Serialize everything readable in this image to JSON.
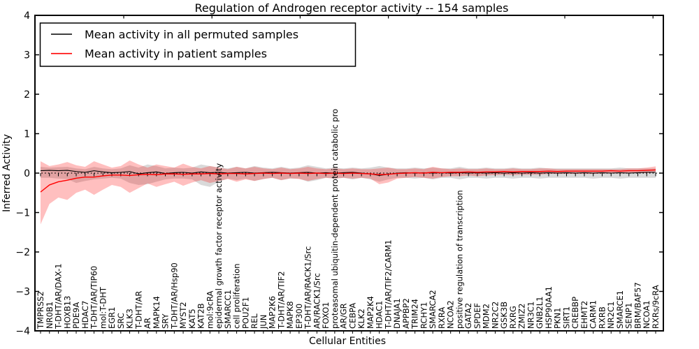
{
  "chart_data": {
    "type": "line",
    "title": "Regulation of Androgen receptor activity -- 154 samples",
    "xlabel": "Cellular Entities",
    "ylabel": "Inferred Activity",
    "ylim": [
      -4,
      4
    ],
    "ytick_labels": [
      "4",
      "3",
      "2",
      "1",
      "0",
      "−1",
      "−2",
      "−3",
      "−4"
    ],
    "grid": false,
    "legend_position": "upper left",
    "zero_line": 0,
    "categories": [
      "TMPRSS2",
      "NR0B1",
      "T-DHT/AR/DAX-1",
      "HOXB13",
      "PDE9A",
      "HDAC7",
      "T-DHT/AR/TIP60",
      "mol:T-DHT",
      "EGR1",
      "SRC",
      "KLK3",
      "T-DHT/AR",
      "AR",
      "MAPK14",
      "SRY",
      "T-DHT/AR/Hsp90",
      "MYST2",
      "KAT5",
      "KAT2B",
      "mol:9cRA",
      "epidermal growth factor receptor activity",
      "SMARCC1",
      "cell proliferation",
      "POU2F1",
      "REL",
      "JUN",
      "MAP2K6",
      "T-DHT/AR/TIF2",
      "MAPK8",
      "EP300",
      "T-DHT/AR/RACK1/Src",
      "AR/RACK1/Src",
      "FOXO1",
      "proteasomal ubiquitin-dependent protein catabolic pro",
      "AR/GR",
      "CEBPA",
      "KLK2",
      "MAP2K4",
      "HDAC1",
      "T-DHT/AR/TIF2/CARM1",
      "DNAJA1",
      "APPBP2",
      "TRIM24",
      "RCHY1",
      "SMARCA2",
      "RXRA",
      "NCOA2",
      "positive regulation of transcription",
      "GATA2",
      "SPDEF",
      "MDM2",
      "NR2C2",
      "GSK3B",
      "RXRG",
      "ZMIZ2",
      "NR3C1",
      "GNB2L1",
      "HSP90AA1",
      "PKN1",
      "SIRT1",
      "CREBBP",
      "EHMT2",
      "CARM1",
      "RXRB",
      "NR2C1",
      "SMARCE1",
      "SENP1",
      "BRM/BAF57",
      "NCOA1",
      "RXRs/9cRA"
    ],
    "series": [
      {
        "name": "Mean activity in all permuted samples",
        "color": "#000000",
        "values": [
          0.06,
          0.07,
          0.06,
          0.07,
          0.04,
          0.02,
          0.06,
          0.03,
          0.01,
          0.02,
          0.04,
          -0.02,
          0.01,
          0.03,
          -0.01,
          0.01,
          0.02,
          0,
          0.03,
          0.01,
          0.02,
          0,
          0.01,
          0.02,
          0,
          0.01,
          0.02,
          0.01,
          0,
          0.01,
          0.02,
          0,
          0.01,
          0,
          0.01,
          0.02,
          0,
          -0.02,
          -0.06,
          -0.03,
          0,
          0.01,
          0,
          0.01,
          0,
          0.01,
          0,
          0.01,
          0,
          0.01,
          0,
          0.01,
          0,
          0.01,
          0,
          0.01,
          0,
          0.01,
          0,
          0.01,
          0,
          0.01,
          0,
          0.01,
          0,
          0.01,
          0,
          0.01,
          0.02,
          0.02
        ]
      },
      {
        "name": "Mean activity in patient samples",
        "color": "#ff0000",
        "values": [
          -0.48,
          -0.3,
          -0.22,
          -0.18,
          -0.13,
          -0.1,
          -0.1,
          -0.07,
          -0.05,
          -0.05,
          -0.06,
          -0.04,
          -0.03,
          -0.04,
          -0.02,
          -0.02,
          -0.03,
          -0.02,
          -0.02,
          -0.01,
          -0.02,
          -0.01,
          -0.01,
          -0.02,
          -0.01,
          0,
          -0.01,
          0,
          -0.01,
          0,
          -0.01,
          0,
          -0.01,
          0,
          -0.01,
          0,
          -0.01,
          -0.02,
          -0.04,
          -0.03,
          -0.01,
          0,
          0.01,
          0,
          0.02,
          0.01,
          0.02,
          0.02,
          0.03,
          0.02,
          0.03,
          0.03,
          0.04,
          0.03,
          0.04,
          0.04,
          0.04,
          0.05,
          0.04,
          0.05,
          0.05,
          0.05,
          0.05,
          0.05,
          0.06,
          0.05,
          0.06,
          0.06,
          0.07,
          0.08
        ]
      }
    ],
    "bands": [
      {
        "name": "permuted-samples-std-band",
        "color": "rgba(0,0,0,0.15)",
        "upper": [
          0.16,
          0.14,
          0.15,
          0.16,
          0.12,
          0.1,
          0.16,
          0.12,
          0.1,
          0.12,
          0.2,
          0.14,
          0.22,
          0.18,
          0.12,
          0.14,
          0.12,
          0.14,
          0.22,
          0.18,
          0.14,
          0.12,
          0.16,
          0.12,
          0.18,
          0.14,
          0.12,
          0.16,
          0.12,
          0.14,
          0.2,
          0.16,
          0.12,
          0.14,
          0.12,
          0.14,
          0.12,
          0.14,
          0.18,
          0.14,
          0.12,
          0.12,
          0.14,
          0.12,
          0.14,
          0.12,
          0.12,
          0.16,
          0.12,
          0.12,
          0.14,
          0.12,
          0.12,
          0.14,
          0.12,
          0.12,
          0.14,
          0.12,
          0.12,
          0.12,
          0.12,
          0.12,
          0.12,
          0.12,
          0.12,
          0.14,
          0.12,
          0.12,
          0.12,
          0.12
        ],
        "lower": [
          -0.12,
          -0.12,
          -0.14,
          -0.15,
          -0.25,
          -0.2,
          -0.16,
          -0.14,
          -0.12,
          -0.14,
          -0.25,
          -0.3,
          -0.28,
          -0.22,
          -0.16,
          -0.14,
          -0.14,
          -0.16,
          -0.3,
          -0.35,
          -0.22,
          -0.14,
          -0.18,
          -0.14,
          -0.2,
          -0.15,
          -0.12,
          -0.18,
          -0.14,
          -0.14,
          -0.22,
          -0.18,
          -0.12,
          -0.14,
          -0.12,
          -0.16,
          -0.12,
          -0.16,
          -0.22,
          -0.16,
          -0.12,
          -0.12,
          -0.14,
          -0.12,
          -0.16,
          -0.12,
          -0.12,
          -0.16,
          -0.12,
          -0.12,
          -0.14,
          -0.12,
          -0.12,
          -0.14,
          -0.12,
          -0.12,
          -0.14,
          -0.12,
          -0.12,
          -0.12,
          -0.12,
          -0.12,
          -0.14,
          -0.12,
          -0.12,
          -0.14,
          -0.12,
          -0.12,
          -0.12,
          -0.12
        ]
      },
      {
        "name": "patient-samples-std-band",
        "color": "rgba(255,0,0,0.25)",
        "upper": [
          0.3,
          0.18,
          0.22,
          0.28,
          0.2,
          0.16,
          0.3,
          0.22,
          0.14,
          0.18,
          0.32,
          0.22,
          0.14,
          0.22,
          0.18,
          0.14,
          0.24,
          0.16,
          0.12,
          0.18,
          0.14,
          0.1,
          0.16,
          0.12,
          0.16,
          0.12,
          0.1,
          0.14,
          0.1,
          0.12,
          0.16,
          0.12,
          0.1,
          0.12,
          0.1,
          0.12,
          0.1,
          0.1,
          0.12,
          0.14,
          0.1,
          0.1,
          0.12,
          0.1,
          0.16,
          0.12,
          0.1,
          0.12,
          0.1,
          0.1,
          0.12,
          0.1,
          0.1,
          0.12,
          0.1,
          0.1,
          0.12,
          0.12,
          0.1,
          0.1,
          0.1,
          0.1,
          0.1,
          0.1,
          0.1,
          0.1,
          0.12,
          0.12,
          0.14,
          0.17
        ],
        "lower": [
          -1.3,
          -0.78,
          -0.62,
          -0.68,
          -0.5,
          -0.42,
          -0.55,
          -0.42,
          -0.3,
          -0.35,
          -0.5,
          -0.38,
          -0.26,
          -0.35,
          -0.28,
          -0.22,
          -0.32,
          -0.24,
          -0.18,
          -0.25,
          -0.2,
          -0.15,
          -0.22,
          -0.16,
          -0.2,
          -0.15,
          -0.12,
          -0.18,
          -0.13,
          -0.15,
          -0.2,
          -0.15,
          -0.12,
          -0.14,
          -0.12,
          -0.14,
          -0.12,
          -0.14,
          -0.28,
          -0.24,
          -0.14,
          -0.12,
          -0.1,
          -0.12,
          -0.14,
          -0.1,
          -0.08,
          -0.08,
          -0.06,
          -0.08,
          -0.06,
          -0.05,
          -0.04,
          -0.05,
          -0.04,
          -0.04,
          -0.04,
          -0.02,
          -0.02,
          -0.02,
          -0.02,
          -0.02,
          -0.02,
          -0.01,
          0,
          -0.01,
          0,
          0,
          0,
          0.02
        ]
      }
    ]
  },
  "legend": {
    "items": [
      {
        "label": "Mean activity in all permuted samples",
        "color": "#000000"
      },
      {
        "label": "Mean activity in patient samples",
        "color": "#ff0000"
      }
    ]
  }
}
